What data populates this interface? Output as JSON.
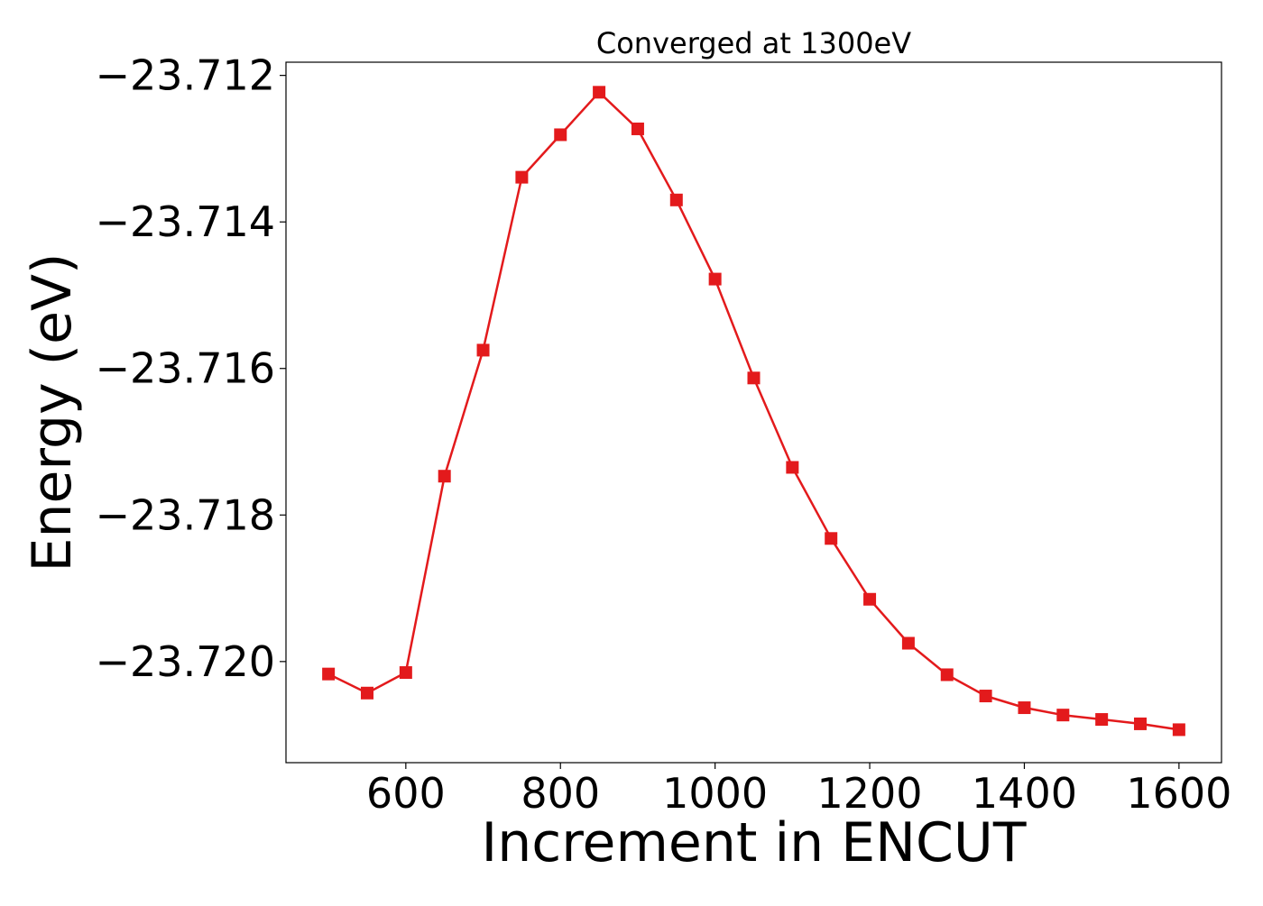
{
  "chart_data": {
    "type": "line",
    "title": "Converged at 1300eV",
    "xlabel": "Increment in ENCUT",
    "ylabel": "Energy (eV)",
    "xlim": [
      445,
      1655
    ],
    "ylim": [
      -23.72138,
      -23.71182
    ],
    "x_ticks": [
      600,
      800,
      1000,
      1200,
      1400,
      1600
    ],
    "x_tick_labels": [
      "600",
      "800",
      "1000",
      "1200",
      "1400",
      "1600"
    ],
    "y_ticks": [
      -23.712,
      -23.714,
      -23.716,
      -23.718,
      -23.72
    ],
    "y_tick_labels": [
      "−23.712",
      "−23.714",
      "−23.716",
      "−23.718",
      "−23.720"
    ],
    "grid": false,
    "marker": "square",
    "series": [
      {
        "color": "#e31a1c",
        "x": [
          500,
          550,
          600,
          650,
          700,
          750,
          800,
          850,
          900,
          950,
          1000,
          1050,
          1100,
          1150,
          1200,
          1250,
          1300,
          1350,
          1400,
          1450,
          1500,
          1550,
          1600
        ],
        "y": [
          -23.72017,
          -23.72043,
          -23.72015,
          -23.71747,
          -23.71575,
          -23.71339,
          -23.71281,
          -23.71223,
          -23.71273,
          -23.7137,
          -23.71478,
          -23.71613,
          -23.71735,
          -23.71832,
          -23.71915,
          -23.71975,
          -23.72018,
          -23.72047,
          -23.72063,
          -23.72073,
          -23.72079,
          -23.72085,
          -23.72093
        ]
      }
    ]
  }
}
